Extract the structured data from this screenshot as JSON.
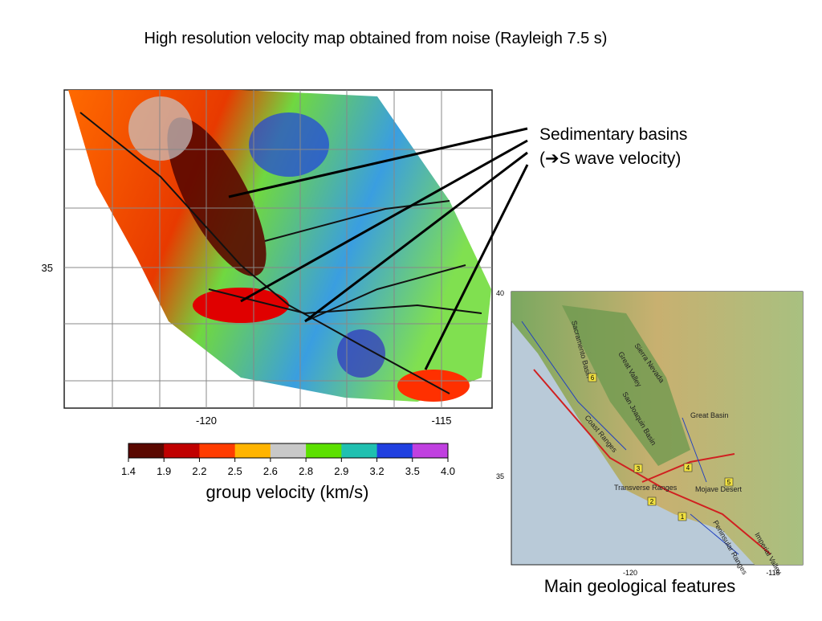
{
  "title": "High resolution velocity map obtained from noise (Rayleigh 7.5 s)",
  "annotation": {
    "line1": "Sedimentary basins",
    "line2": "(➔S wave velocity)"
  },
  "velocity_map": {
    "xtick_labels": [
      "-120",
      "-115"
    ],
    "ytick_labels": [
      "35"
    ]
  },
  "colorbar": {
    "ticks": [
      "1.4",
      "1.9",
      "2.2",
      "2.5",
      "2.6",
      "2.8",
      "2.9",
      "3.2",
      "3.5",
      "4.0"
    ],
    "colors": [
      "#5a0800",
      "#c00000",
      "#ff3c00",
      "#ffb400",
      "#c8c8c8",
      "#5ce000",
      "#20c0b0",
      "#2040e0",
      "#c040e0"
    ],
    "label": "group velocity (km/s)"
  },
  "geology_map": {
    "xtick_labels": [
      "-120",
      "-115"
    ],
    "ytick_labels": [
      "40",
      "35"
    ],
    "features": [
      "Sacramento Basin",
      "Great Valley",
      "Sierra Nevada",
      "San Joaquin Basin",
      "Coast Ranges",
      "Great Basin",
      "Transverse Ranges",
      "Mojave Desert",
      "Peninsular Ranges",
      "Imperial Valley"
    ],
    "markers": [
      "1",
      "2",
      "3",
      "4",
      "5",
      "6"
    ],
    "caption": "Main geological features"
  }
}
